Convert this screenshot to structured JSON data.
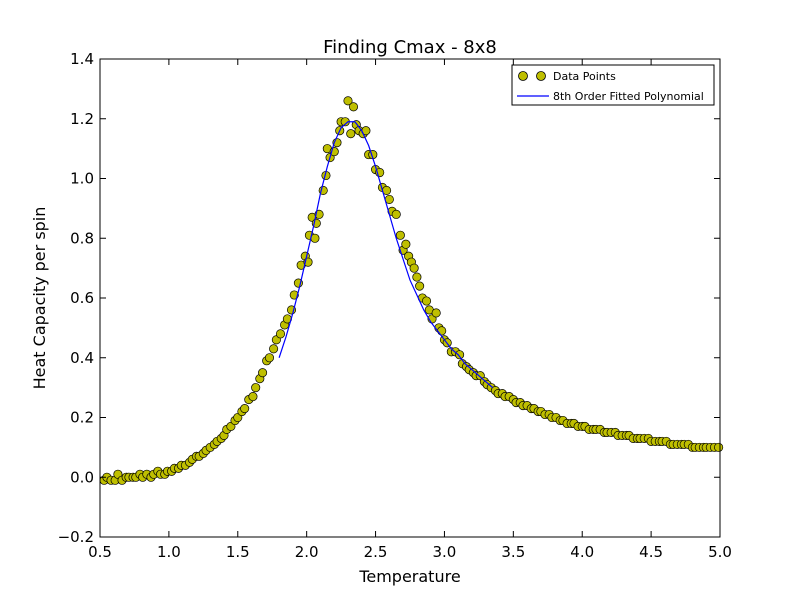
{
  "chart_data": {
    "type": "scatter",
    "title": "Finding Cmax - 8x8",
    "xlabel": "Temperature",
    "ylabel": "Heat Capacity per spin",
    "xlim": [
      0.5,
      5.0
    ],
    "ylim": [
      -0.2,
      1.4
    ],
    "xticks": [
      "0.5",
      "1.0",
      "1.5",
      "2.0",
      "2.5",
      "3.0",
      "3.5",
      "4.0",
      "4.5",
      "5.0"
    ],
    "yticks": [
      "−0.2",
      "0.0",
      "0.2",
      "0.4",
      "0.6",
      "0.8",
      "1.0",
      "1.2",
      "1.4"
    ],
    "grid": false,
    "legend_position": "top-right",
    "colors": {
      "points": "#bfbf00",
      "line": "#0000ff"
    },
    "series": [
      {
        "name": "Data Points",
        "kind": "markers",
        "points": [
          [
            0.53,
            -0.01
          ],
          [
            0.55,
            0.0
          ],
          [
            0.58,
            -0.01
          ],
          [
            0.61,
            -0.01
          ],
          [
            0.63,
            0.01
          ],
          [
            0.66,
            -0.01
          ],
          [
            0.69,
            0.0
          ],
          [
            0.71,
            0.0
          ],
          [
            0.74,
            0.0
          ],
          [
            0.76,
            0.0
          ],
          [
            0.79,
            0.01
          ],
          [
            0.81,
            0.0
          ],
          [
            0.84,
            0.01
          ],
          [
            0.87,
            0.0
          ],
          [
            0.89,
            0.01
          ],
          [
            0.92,
            0.02
          ],
          [
            0.94,
            0.01
          ],
          [
            0.97,
            0.01
          ],
          [
            0.99,
            0.02
          ],
          [
            1.02,
            0.02
          ],
          [
            1.04,
            0.03
          ],
          [
            1.07,
            0.03
          ],
          [
            1.09,
            0.04
          ],
          [
            1.12,
            0.04
          ],
          [
            1.15,
            0.05
          ],
          [
            1.17,
            0.06
          ],
          [
            1.2,
            0.07
          ],
          [
            1.22,
            0.07
          ],
          [
            1.25,
            0.08
          ],
          [
            1.27,
            0.09
          ],
          [
            1.3,
            0.1
          ],
          [
            1.33,
            0.11
          ],
          [
            1.35,
            0.12
          ],
          [
            1.38,
            0.13
          ],
          [
            1.4,
            0.14
          ],
          [
            1.42,
            0.16
          ],
          [
            1.45,
            0.17
          ],
          [
            1.48,
            0.19
          ],
          [
            1.5,
            0.2
          ],
          [
            1.53,
            0.22
          ],
          [
            1.55,
            0.23
          ],
          [
            1.58,
            0.26
          ],
          [
            1.61,
            0.27
          ],
          [
            1.63,
            0.3
          ],
          [
            1.66,
            0.33
          ],
          [
            1.68,
            0.35
          ],
          [
            1.71,
            0.39
          ],
          [
            1.73,
            0.4
          ],
          [
            1.76,
            0.43
          ],
          [
            1.78,
            0.46
          ],
          [
            1.81,
            0.48
          ],
          [
            1.84,
            0.51
          ],
          [
            1.86,
            0.53
          ],
          [
            1.89,
            0.56
          ],
          [
            1.91,
            0.61
          ],
          [
            1.94,
            0.65
          ],
          [
            1.96,
            0.71
          ],
          [
            1.99,
            0.74
          ],
          [
            2.01,
            0.72
          ],
          [
            2.02,
            0.81
          ],
          [
            2.04,
            0.87
          ],
          [
            2.06,
            0.8
          ],
          [
            2.07,
            0.85
          ],
          [
            2.09,
            0.88
          ],
          [
            2.12,
            0.96
          ],
          [
            2.14,
            1.01
          ],
          [
            2.15,
            1.1
          ],
          [
            2.17,
            1.07
          ],
          [
            2.2,
            1.09
          ],
          [
            2.22,
            1.12
          ],
          [
            2.24,
            1.16
          ],
          [
            2.25,
            1.19
          ],
          [
            2.28,
            1.19
          ],
          [
            2.3,
            1.26
          ],
          [
            2.32,
            1.15
          ],
          [
            2.34,
            1.24
          ],
          [
            2.36,
            1.18
          ],
          [
            2.38,
            1.16
          ],
          [
            2.41,
            1.15
          ],
          [
            2.43,
            1.16
          ],
          [
            2.45,
            1.08
          ],
          [
            2.48,
            1.08
          ],
          [
            2.5,
            1.03
          ],
          [
            2.53,
            1.02
          ],
          [
            2.55,
            0.97
          ],
          [
            2.58,
            0.96
          ],
          [
            2.6,
            0.93
          ],
          [
            2.62,
            0.89
          ],
          [
            2.65,
            0.88
          ],
          [
            2.68,
            0.81
          ],
          [
            2.7,
            0.76
          ],
          [
            2.72,
            0.78
          ],
          [
            2.74,
            0.74
          ],
          [
            2.76,
            0.72
          ],
          [
            2.78,
            0.7
          ],
          [
            2.8,
            0.67
          ],
          [
            2.82,
            0.64
          ],
          [
            2.84,
            0.6
          ],
          [
            2.87,
            0.59
          ],
          [
            2.89,
            0.56
          ],
          [
            2.91,
            0.53
          ],
          [
            2.94,
            0.55
          ],
          [
            2.96,
            0.5
          ],
          [
            2.98,
            0.49
          ],
          [
            3.0,
            0.46
          ],
          [
            3.02,
            0.45
          ],
          [
            3.05,
            0.42
          ],
          [
            3.08,
            0.42
          ],
          [
            3.11,
            0.41
          ],
          [
            3.13,
            0.38
          ],
          [
            3.16,
            0.37
          ],
          [
            3.18,
            0.36
          ],
          [
            3.21,
            0.35
          ],
          [
            3.23,
            0.34
          ],
          [
            3.26,
            0.34
          ],
          [
            3.29,
            0.32
          ],
          [
            3.31,
            0.31
          ],
          [
            3.34,
            0.3
          ],
          [
            3.37,
            0.29
          ],
          [
            3.39,
            0.28
          ],
          [
            3.42,
            0.28
          ],
          [
            3.44,
            0.27
          ],
          [
            3.47,
            0.27
          ],
          [
            3.5,
            0.26
          ],
          [
            3.52,
            0.25
          ],
          [
            3.55,
            0.25
          ],
          [
            3.57,
            0.24
          ],
          [
            3.6,
            0.24
          ],
          [
            3.63,
            0.23
          ],
          [
            3.65,
            0.23
          ],
          [
            3.68,
            0.22
          ],
          [
            3.7,
            0.22
          ],
          [
            3.73,
            0.21
          ],
          [
            3.76,
            0.21
          ],
          [
            3.78,
            0.2
          ],
          [
            3.81,
            0.2
          ],
          [
            3.84,
            0.19
          ],
          [
            3.86,
            0.19
          ],
          [
            3.89,
            0.18
          ],
          [
            3.92,
            0.18
          ],
          [
            3.94,
            0.18
          ],
          [
            3.97,
            0.17
          ],
          [
            4.0,
            0.17
          ],
          [
            4.02,
            0.17
          ],
          [
            4.05,
            0.16
          ],
          [
            4.08,
            0.16
          ],
          [
            4.1,
            0.16
          ],
          [
            4.13,
            0.16
          ],
          [
            4.16,
            0.15
          ],
          [
            4.18,
            0.15
          ],
          [
            4.21,
            0.15
          ],
          [
            4.24,
            0.15
          ],
          [
            4.26,
            0.14
          ],
          [
            4.29,
            0.14
          ],
          [
            4.32,
            0.14
          ],
          [
            4.34,
            0.14
          ],
          [
            4.37,
            0.13
          ],
          [
            4.4,
            0.13
          ],
          [
            4.42,
            0.13
          ],
          [
            4.45,
            0.13
          ],
          [
            4.48,
            0.13
          ],
          [
            4.5,
            0.12
          ],
          [
            4.53,
            0.12
          ],
          [
            4.56,
            0.12
          ],
          [
            4.58,
            0.12
          ],
          [
            4.61,
            0.12
          ],
          [
            4.64,
            0.11
          ],
          [
            4.66,
            0.11
          ],
          [
            4.69,
            0.11
          ],
          [
            4.72,
            0.11
          ],
          [
            4.74,
            0.11
          ],
          [
            4.77,
            0.11
          ],
          [
            4.8,
            0.1
          ],
          [
            4.82,
            0.1
          ],
          [
            4.85,
            0.1
          ],
          [
            4.88,
            0.1
          ],
          [
            4.9,
            0.1
          ],
          [
            4.93,
            0.1
          ],
          [
            4.96,
            0.1
          ],
          [
            4.99,
            0.1
          ]
        ]
      },
      {
        "name": "8th Order Fitted Polynomial",
        "kind": "line",
        "points": [
          [
            1.8,
            0.4
          ],
          [
            1.85,
            0.47
          ],
          [
            1.9,
            0.55
          ],
          [
            1.95,
            0.64
          ],
          [
            2.0,
            0.74
          ],
          [
            2.05,
            0.84
          ],
          [
            2.1,
            0.95
          ],
          [
            2.15,
            1.04
          ],
          [
            2.2,
            1.12
          ],
          [
            2.25,
            1.17
          ],
          [
            2.3,
            1.19
          ],
          [
            2.35,
            1.19
          ],
          [
            2.4,
            1.16
          ],
          [
            2.45,
            1.11
          ],
          [
            2.5,
            1.04
          ],
          [
            2.55,
            0.96
          ],
          [
            2.6,
            0.88
          ],
          [
            2.65,
            0.8
          ],
          [
            2.7,
            0.73
          ],
          [
            2.75,
            0.66
          ],
          [
            2.8,
            0.61
          ],
          [
            2.85,
            0.56
          ],
          [
            2.9,
            0.52
          ],
          [
            2.95,
            0.49
          ],
          [
            3.0,
            0.46
          ],
          [
            3.05,
            0.43
          ],
          [
            3.1,
            0.41
          ],
          [
            3.15,
            0.38
          ],
          [
            3.2,
            0.36
          ],
          [
            3.25,
            0.34
          ],
          [
            3.3,
            0.32
          ],
          [
            3.35,
            0.3
          ]
        ]
      }
    ]
  }
}
